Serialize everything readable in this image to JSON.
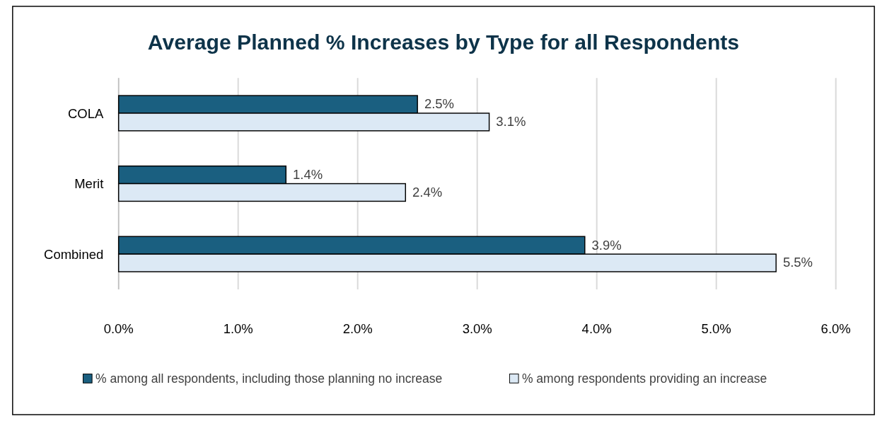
{
  "chart_data": {
    "type": "bar",
    "orientation": "horizontal",
    "title": "Average Planned % Increases by Type for all Respondents",
    "categories": [
      "COLA",
      "Merit",
      "Combined"
    ],
    "series": [
      {
        "name": "% among all respondents, including those planning no increase",
        "color": "#1a5f80",
        "values": [
          2.5,
          1.4,
          3.9
        ],
        "value_labels": [
          "2.5%",
          "1.4%",
          "3.9%"
        ]
      },
      {
        "name": "% among respondents providing an increase",
        "color": "#dce9f5",
        "values": [
          3.1,
          2.4,
          5.5
        ],
        "value_labels": [
          "3.1%",
          "2.4%",
          "5.5%"
        ]
      }
    ],
    "xlim": [
      0,
      6
    ],
    "xticks": [
      {
        "value": 0,
        "label": "0.0%"
      },
      {
        "value": 1,
        "label": "1.0%"
      },
      {
        "value": 2,
        "label": "2.0%"
      },
      {
        "value": 3,
        "label": "3.0%"
      },
      {
        "value": 4,
        "label": "4.0%"
      },
      {
        "value": 5,
        "label": "5.0%"
      },
      {
        "value": 6,
        "label": "6.0%"
      }
    ],
    "grid": "x",
    "legend": "bottom"
  }
}
